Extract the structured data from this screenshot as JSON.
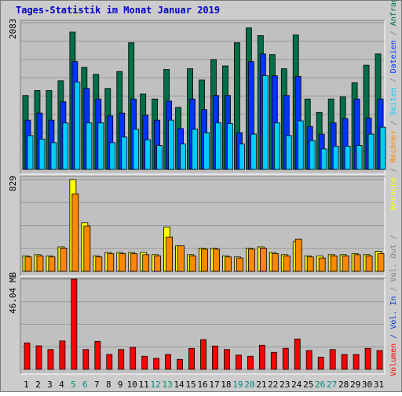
{
  "title": "Tages-Statistik im Monat Januar 2019",
  "colors": {
    "background": "#cccccc",
    "plot_bg": "#c0c0c0",
    "grid": "#999999",
    "title": "#0000cc",
    "anfragen": "#006f46",
    "dateien": "#0033ff",
    "seiten": "#00ccff",
    "besuche": "#ffff00",
    "rechner": "#ff8800",
    "volumen": "#ff0000",
    "outline": "#000000",
    "weekend_label": "#008b7a",
    "weekday_label": "#000000",
    "label_grey": "#808080",
    "label_in": "#0033cc"
  },
  "chart_data": [
    {
      "type": "bar",
      "panel": "hits",
      "ymax_label": "2083",
      "ylim": [
        0,
        2083
      ],
      "categories": [
        "1",
        "2",
        "3",
        "4",
        "5",
        "6",
        "7",
        "8",
        "9",
        "10",
        "11",
        "12",
        "13",
        "14",
        "15",
        "16",
        "17",
        "18",
        "19",
        "20",
        "21",
        "22",
        "23",
        "24",
        "25",
        "26",
        "27",
        "28",
        "29",
        "30",
        "31"
      ],
      "weekend_days": [
        5,
        6,
        12,
        13,
        19,
        20,
        26,
        27
      ],
      "series": [
        {
          "name": "Anfragen",
          "values": [
            1050,
            1120,
            1120,
            1260,
            1950,
            1450,
            1350,
            1150,
            1390,
            1800,
            1070,
            1000,
            1420,
            880,
            1430,
            1270,
            1560,
            1470,
            1800,
            2010,
            1900,
            1630,
            1430,
            1910,
            1000,
            810,
            1000,
            1030,
            1230,
            1480,
            1640
          ]
        },
        {
          "name": "Dateien",
          "values": [
            700,
            800,
            700,
            960,
            1530,
            1150,
            1000,
            760,
            800,
            1000,
            770,
            700,
            970,
            580,
            1000,
            850,
            1050,
            1050,
            520,
            1530,
            1640,
            1330,
            1050,
            1320,
            610,
            500,
            660,
            720,
            1000,
            730,
            1000
          ]
        },
        {
          "name": "Seiten",
          "values": [
            480,
            430,
            380,
            660,
            1240,
            660,
            660,
            380,
            460,
            570,
            420,
            340,
            700,
            360,
            570,
            520,
            660,
            650,
            360,
            500,
            1330,
            660,
            480,
            690,
            410,
            290,
            330,
            330,
            340,
            500,
            600
          ]
        }
      ],
      "right_labels": [
        "Anfragen",
        "Dateien",
        "Seiten"
      ]
    },
    {
      "type": "bar",
      "panel": "visits",
      "ymax_label": "829",
      "ylim": [
        0,
        829
      ],
      "series": [
        {
          "name": "Besuche",
          "values": [
            140,
            150,
            140,
            220,
            829,
            440,
            140,
            170,
            170,
            170,
            170,
            150,
            400,
            230,
            150,
            210,
            210,
            140,
            130,
            210,
            220,
            170,
            150,
            270,
            140,
            140,
            150,
            150,
            160,
            150,
            180
          ]
        },
        {
          "name": "Rechner",
          "values": [
            130,
            140,
            130,
            210,
            700,
            410,
            130,
            160,
            160,
            160,
            150,
            140,
            310,
            230,
            140,
            200,
            200,
            130,
            120,
            200,
            210,
            160,
            140,
            290,
            130,
            120,
            140,
            140,
            150,
            140,
            160
          ]
        }
      ],
      "right_labels": [
        "Besuche",
        "Rechner"
      ]
    },
    {
      "type": "bar",
      "panel": "volume",
      "ymax_label": "46.04 MB",
      "ylim": [
        0,
        46.04
      ],
      "series": [
        {
          "name": "Volumen",
          "values": [
            13.5,
            12,
            10.1,
            14.5,
            46.04,
            10.1,
            14.3,
            7.6,
            10.1,
            11.2,
            6.7,
            5.6,
            7.6,
            5.1,
            10.7,
            15.2,
            11.9,
            10.1,
            7.3,
            6.7,
            12.3,
            8.7,
            10.7,
            15.5,
            9.6,
            6.2,
            10.1,
            7.6,
            7.6,
            10.7,
            9.6
          ]
        }
      ],
      "right_labels": [
        "Volumen",
        "/ Vol. In",
        "/ Vol. Out",
        "/"
      ]
    }
  ]
}
